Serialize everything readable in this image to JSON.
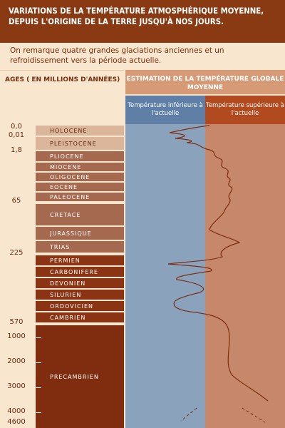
{
  "header": {
    "title": "VARIATIONS DE LA TEMPÉRATURE ATMOSPHÉRIQUE MOYENNE, DEPUIS L'ORIGINE DE LA TERRE JUSQU'À NOS JOURS.",
    "subtitle": "On remarque quatre grandes glaciations anciennes et un refroidissement vers la période actuelle."
  },
  "columns": {
    "ages_label": "AGES ( EN MILLIONS D'ANNÉES)",
    "estimate_label": "ESTIMATION DE LA TEMPÉRATURE GLOBALE MOYENNE",
    "colder_label": "Température inférieure à l'actuelle",
    "warmer_label": "Température supérieure à l'actuelle"
  },
  "colors": {
    "header": "#8a3a12",
    "colder": "#8ba2bd",
    "warmer": "#c7876a",
    "curve": "#7a2e0e"
  },
  "chart_data": {
    "type": "line",
    "title": "VARIATIONS DE LA TEMPÉRATURE ATMOSPHÉRIQUE MOYENNE, DEPUIS L'ORIGINE DE LA TERRE JUSQU'À NOS JOURS.",
    "ylabel": "AGES ( EN MILLIONS D'ANNÉES)",
    "xlabel": "ESTIMATION DE LA TEMPÉRATURE GLOBALE MOYENNE",
    "x_regions": [
      "Température inférieure à l'actuelle",
      "Température supérieure à l'actuelle"
    ],
    "age_ticks": [
      "0,0",
      "0,01",
      "1,8",
      "65",
      "225",
      "570",
      "1000",
      "2000",
      "3000",
      "4000",
      "4600"
    ],
    "periods": [
      {
        "name": "HOLOCENE",
        "shade": "light"
      },
      {
        "name": "PLEISTOCENE",
        "shade": "light"
      },
      {
        "name": "PLIOCENE",
        "shade": "mid"
      },
      {
        "name": "MIOCENE",
        "shade": "mid"
      },
      {
        "name": "OLIGOCENE",
        "shade": "mid"
      },
      {
        "name": "EOCENE",
        "shade": "mid"
      },
      {
        "name": "PALEOCENE",
        "shade": "mid"
      },
      {
        "name": "CRETACE",
        "shade": "mid"
      },
      {
        "name": "JURASSIQUE",
        "shade": "mid"
      },
      {
        "name": "TRIAS",
        "shade": "mid"
      },
      {
        "name": "PERMIEN",
        "shade": "dark"
      },
      {
        "name": "CARBONIFERE",
        "shade": "dark"
      },
      {
        "name": "DEVONIEN",
        "shade": "dark"
      },
      {
        "name": "SILURIEN",
        "shade": "dark"
      },
      {
        "name": "ORDOVICIEN",
        "shade": "dark"
      },
      {
        "name": "CAMBRIEN",
        "shade": "dark"
      },
      {
        "name": "PRECAMBRIEN",
        "shade": "deep"
      }
    ],
    "grid": false,
    "legend": "top"
  }
}
